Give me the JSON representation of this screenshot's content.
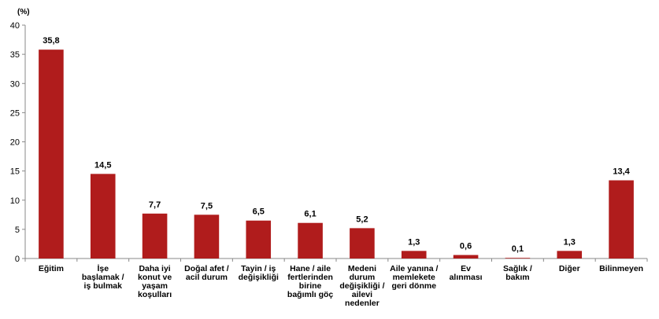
{
  "chart_data": {
    "type": "bar",
    "ylabel": "(%)",
    "ylim": [
      0,
      40
    ],
    "yticks": [
      0,
      5,
      10,
      15,
      20,
      25,
      30,
      35,
      40
    ],
    "grid": false,
    "legend": "none",
    "bar_color": "#b01c1c",
    "categories": [
      [
        "Eğitim"
      ],
      [
        "İşe",
        "başlamak /",
        "iş bulmak"
      ],
      [
        "Daha iyi",
        "konut ve",
        "yaşam",
        "koşulları"
      ],
      [
        "Doğal afet /",
        "acil durum"
      ],
      [
        "Tayin / iş",
        "değişikliği"
      ],
      [
        "Hane / aile",
        "fertlerinden",
        "birine",
        "bağımlı göç"
      ],
      [
        "Medeni",
        "durum",
        "değişikliği /",
        "ailevi",
        "nedenler"
      ],
      [
        "Aile yanına /",
        "memlekete",
        "geri dönme"
      ],
      [
        "Ev",
        "alınması"
      ],
      [
        "Sağlık /",
        "bakım"
      ],
      [
        "Diğer"
      ],
      [
        "Bilinmeyen"
      ]
    ],
    "values": [
      35.8,
      14.5,
      7.7,
      7.5,
      6.5,
      6.1,
      5.2,
      1.3,
      0.6,
      0.1,
      1.3,
      13.4
    ],
    "value_labels": [
      "35,8",
      "14,5",
      "7,7",
      "7,5",
      "6,5",
      "6,1",
      "5,2",
      "1,3",
      "0,6",
      "0,1",
      "1,3",
      "13,4"
    ]
  }
}
